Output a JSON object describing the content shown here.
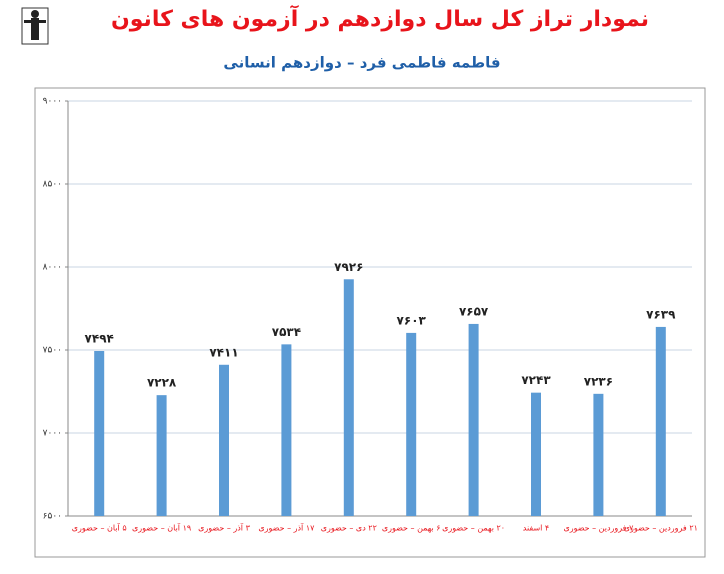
{
  "chart_data": {
    "type": "bar",
    "title": "نمودار تراز کل سال دوازدهم در آزمون های کانون",
    "subtitle": "فاطمه فاطمی فرد – دوازدهم انسانی",
    "categories": [
      "۵ آبان – حضوری",
      "۱۹ آبان – حضوری",
      "۳ آذر – حضوری",
      "۱۷ آذر – حضوری",
      "۲۲ دی – حضوری",
      "۶ بهمن – حضوری",
      "۲۰ بهمن – حضوری",
      "۴ اسفند",
      "۷ فروردین – حضوری",
      "۲۱ فروردین – حضوری"
    ],
    "values": [
      7494,
      7228,
      7411,
      7534,
      7926,
      7603,
      7657,
      7243,
      7236,
      7639
    ],
    "value_labels": [
      "۷۴۹۴",
      "۷۲۲۸",
      "۷۴۱۱",
      "۷۵۳۴",
      "۷۹۲۶",
      "۷۶۰۳",
      "۷۶۵۷",
      "۷۲۴۳",
      "۷۲۳۶",
      "۷۶۳۹"
    ],
    "color": "#5b9bd5",
    "ylim": [
      6500,
      9000
    ],
    "yticks": [
      {
        "value": 6500,
        "label": "۶۵۰۰"
      },
      {
        "value": 7000,
        "label": "۷۰۰۰"
      },
      {
        "value": 7500,
        "label": "۷۵۰۰"
      },
      {
        "value": 8000,
        "label": "۸۰۰۰"
      },
      {
        "value": 8500,
        "label": "۸۵۰۰"
      },
      {
        "value": 9000,
        "label": "۹۰۰۰"
      }
    ],
    "grid": true
  }
}
